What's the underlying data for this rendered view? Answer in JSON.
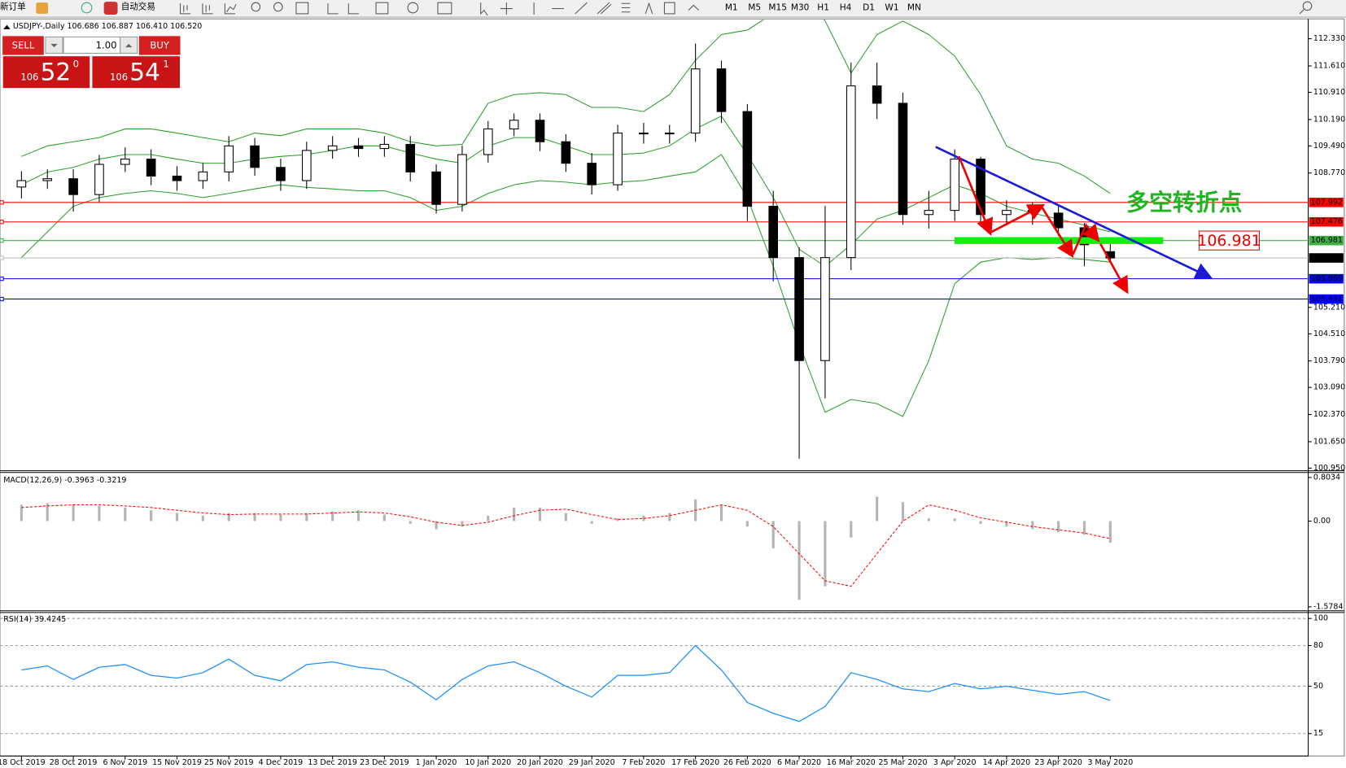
{
  "toolbar": {
    "new_order": "新订单",
    "auto_trading": "自动交易",
    "timeframes": [
      "M1",
      "M5",
      "M15",
      "M30",
      "H1",
      "H4",
      "D1",
      "W1",
      "MN"
    ]
  },
  "trade_panel": {
    "sell_label": "SELL",
    "buy_label": "BUY",
    "lots": "1.00",
    "sell": {
      "prefix": "106",
      "big": "52",
      "sup": "0"
    },
    "buy": {
      "prefix": "106",
      "big": "54",
      "sup": "1"
    }
  },
  "annotations": {
    "turning_point": "多空转折点",
    "level_box": "106.981"
  },
  "chart_data": [
    {
      "type": "candlestick",
      "title": "USDJPY-,Daily  106.686 106.887 106.410 106.520",
      "categories": [
        "18 Oct 2019",
        null,
        "28 Oct 2019",
        null,
        "6 Nov 2019",
        null,
        "15 Nov 2019",
        null,
        "25 Nov 2019",
        null,
        "4 Dec 2019",
        null,
        "13 Dec 2019",
        null,
        "23 Dec 2019",
        null,
        "1 Jan 2020",
        null,
        "10 Jan 2020",
        null,
        "20 Jan 2020",
        null,
        "29 Jan 2020",
        null,
        "7 Feb 2020",
        null,
        "17 Feb 2020",
        null,
        "26 Feb 2020",
        null,
        "6 Mar 2020",
        null,
        "16 Mar 2020",
        null,
        "25 Mar 2020",
        null,
        "3 Apr 2020",
        null,
        "14 Apr 2020",
        null,
        "23 Apr 2020",
        null,
        "3 May 2020"
      ],
      "open": [
        108.4,
        108.57,
        108.62,
        108.2,
        109.0,
        109.14,
        108.69,
        108.57,
        108.8,
        109.49,
        108.92,
        108.57,
        109.37,
        109.49,
        109.42,
        109.53,
        108.8,
        107.94,
        109.26,
        109.94,
        110.17,
        109.6,
        109.03,
        108.46,
        109.83,
        109.83,
        109.83,
        111.53,
        110.4,
        107.89,
        106.53,
        103.8,
        106.53,
        111.08,
        110.62,
        107.67,
        107.78,
        109.14,
        107.67,
        107.78,
        107.71,
        107.32,
        106.686
      ],
      "high": [
        108.82,
        108.87,
        108.87,
        109.25,
        109.45,
        109.4,
        108.95,
        109.05,
        109.75,
        109.7,
        109.15,
        109.6,
        109.75,
        109.7,
        109.75,
        109.75,
        109.0,
        109.5,
        110.15,
        110.35,
        110.35,
        109.8,
        109.3,
        110.05,
        110.1,
        110.05,
        112.2,
        111.75,
        110.6,
        108.3,
        106.8,
        107.9,
        111.7,
        111.7,
        110.9,
        108.3,
        109.4,
        109.2,
        108.05,
        108.0,
        107.9,
        107.45,
        106.887
      ],
      "low": [
        108.1,
        108.35,
        107.75,
        108.0,
        108.8,
        108.45,
        108.3,
        108.35,
        108.55,
        108.7,
        108.3,
        108.35,
        109.15,
        109.2,
        109.2,
        108.55,
        107.7,
        107.75,
        109.05,
        109.75,
        109.35,
        108.8,
        108.2,
        108.3,
        109.55,
        109.55,
        109.6,
        110.1,
        107.5,
        105.9,
        101.2,
        102.8,
        106.2,
        110.2,
        107.4,
        107.3,
        107.5,
        107.4,
        107.4,
        107.4,
        107.1,
        106.3,
        106.41
      ],
      "close": [
        108.57,
        108.62,
        108.2,
        109.0,
        109.14,
        108.69,
        108.57,
        108.8,
        109.49,
        108.92,
        108.57,
        109.37,
        109.49,
        109.42,
        109.53,
        108.8,
        107.94,
        109.26,
        109.94,
        110.17,
        109.6,
        109.03,
        108.46,
        109.83,
        109.83,
        109.83,
        111.53,
        110.4,
        107.89,
        106.53,
        103.8,
        106.53,
        111.08,
        110.62,
        107.67,
        107.78,
        109.14,
        107.67,
        107.78,
        107.71,
        107.32,
        106.87,
        106.52
      ],
      "band_color": "#2ca02c",
      "upper": [
        109.21,
        109.49,
        109.6,
        109.71,
        109.94,
        109.94,
        109.83,
        109.71,
        109.6,
        109.83,
        109.76,
        109.94,
        109.94,
        109.94,
        109.83,
        109.6,
        109.49,
        109.53,
        110.62,
        110.85,
        110.9,
        110.85,
        110.51,
        110.51,
        110.4,
        110.85,
        111.76,
        112.44,
        112.56,
        113.0,
        113.6,
        112.8,
        111.42,
        112.44,
        112.8,
        112.44,
        111.87,
        110.85,
        109.49,
        109.14,
        109.03,
        108.69,
        108.23
      ],
      "middle": [
        108.46,
        108.8,
        108.92,
        109.14,
        109.26,
        109.26,
        109.14,
        109.03,
        109.03,
        109.14,
        109.21,
        109.26,
        109.37,
        109.49,
        109.49,
        109.3,
        109.14,
        109.03,
        109.49,
        109.71,
        109.71,
        109.49,
        109.26,
        109.26,
        109.3,
        109.49,
        109.94,
        110.28,
        109.26,
        108.12,
        106.75,
        106.3,
        106.87,
        107.55,
        107.78,
        108.12,
        108.46,
        108.23,
        107.89,
        107.71,
        107.55,
        107.39,
        107.21
      ],
      "lower": [
        106.53,
        107.21,
        107.89,
        108.12,
        108.23,
        108.3,
        108.23,
        108.12,
        108.23,
        108.35,
        108.46,
        108.39,
        108.35,
        108.3,
        108.3,
        108.12,
        107.78,
        107.89,
        108.23,
        108.46,
        108.57,
        108.53,
        108.46,
        108.53,
        108.57,
        108.69,
        108.8,
        109.26,
        108.12,
        106.3,
        104.25,
        102.43,
        102.77,
        102.66,
        102.32,
        103.8,
        105.84,
        106.41,
        106.53,
        106.48,
        106.53,
        106.48,
        106.41
      ],
      "ylim": [
        100.88,
        112.81
      ],
      "yticks": [
        {
          "value": 112.33,
          "label": "112.330"
        },
        {
          "value": 111.61,
          "label": "111.610"
        },
        {
          "value": 110.91,
          "label": "110.910"
        },
        {
          "value": 110.19,
          "label": "110.190"
        },
        {
          "value": 109.49,
          "label": "109.490"
        },
        {
          "value": 108.77,
          "label": "108.770"
        },
        {
          "value": 105.21,
          "label": "105.210"
        },
        {
          "value": 104.51,
          "label": "104.510"
        },
        {
          "value": 103.79,
          "label": "103.790"
        },
        {
          "value": 103.09,
          "label": "103.090"
        },
        {
          "value": 102.37,
          "label": "102.370"
        },
        {
          "value": 101.65,
          "label": "101.650"
        },
        {
          "value": 100.95,
          "label": "100.950"
        }
      ],
      "levels": [
        {
          "value": 107.992,
          "label": "107.992",
          "color": "#ff0000",
          "label_bg": "#ff0000",
          "label_fg": "#ffffff"
        },
        {
          "value": 107.476,
          "label": "107.476",
          "color": "#ff0000",
          "label_bg": "#ff0000",
          "label_fg": "#ffffff"
        },
        {
          "value": 106.981,
          "label": "106.981",
          "color": "#3cb043",
          "label_bg": "#3cb043",
          "label_fg": "#ffffff"
        },
        {
          "value": 106.52,
          "label": "106.520",
          "color": "#c0c0c0",
          "label_bg": "#000000",
          "label_fg": "#ffffff"
        },
        {
          "value": 105.969,
          "label": "105.969",
          "color": "#0000ff",
          "label_bg": "#0000ff",
          "label_fg": "#ffffff"
        },
        {
          "value": 105.431,
          "label": "105.431",
          "color": "#0000ff",
          "label_bg": "#0000ff",
          "label_fg": "#ffffff"
        }
      ]
    },
    {
      "type": "macd",
      "title": "MACD(12,26,9) -0.3963 -0.3219",
      "values": [
        0.3,
        0.33,
        0.3,
        0.28,
        0.25,
        0.2,
        0.15,
        0.1,
        0.15,
        0.15,
        0.12,
        0.15,
        0.18,
        0.2,
        0.12,
        -0.05,
        -0.15,
        -0.1,
        0.1,
        0.25,
        0.25,
        0.15,
        -0.05,
        0.05,
        0.1,
        0.15,
        0.4,
        0.3,
        -0.1,
        -0.5,
        -1.45,
        -1.2,
        -0.3,
        0.45,
        0.35,
        0.05,
        0.05,
        -0.05,
        -0.1,
        -0.15,
        -0.2,
        -0.25,
        -0.3963
      ],
      "signal": [
        0.25,
        0.28,
        0.3,
        0.3,
        0.28,
        0.25,
        0.2,
        0.15,
        0.12,
        0.13,
        0.13,
        0.13,
        0.15,
        0.17,
        0.15,
        0.08,
        -0.02,
        -0.08,
        -0.02,
        0.1,
        0.2,
        0.22,
        0.12,
        0.03,
        0.05,
        0.1,
        0.2,
        0.3,
        0.2,
        -0.1,
        -0.6,
        -1.1,
        -1.2,
        -0.6,
        0.0,
        0.3,
        0.2,
        0.06,
        -0.02,
        -0.1,
        -0.16,
        -0.22,
        -0.3219
      ],
      "color": "#b4b4b4",
      "signal_color": "#ff0000",
      "ylim": [
        -1.62,
        0.88
      ],
      "yticks": [
        0.8034,
        {
          "value": 0,
          "label": "0.00"
        },
        -1.5784
      ]
    },
    {
      "type": "line",
      "title": "RSI(14) 39.4245",
      "values": [
        62,
        65,
        55,
        64,
        66,
        58,
        56,
        60,
        70,
        58,
        54,
        66,
        68,
        64,
        62,
        53,
        40,
        55,
        65,
        68,
        60,
        50,
        42,
        58,
        58,
        60,
        80,
        62,
        38,
        30,
        24,
        35,
        60,
        55,
        48,
        46,
        52,
        48,
        50,
        47,
        44,
        46,
        39.4245
      ],
      "color": "#1e90ff",
      "ylim": [
        -1.5,
        104.4
      ],
      "yticks": [
        100,
        80,
        50,
        15
      ],
      "grid": true
    }
  ]
}
